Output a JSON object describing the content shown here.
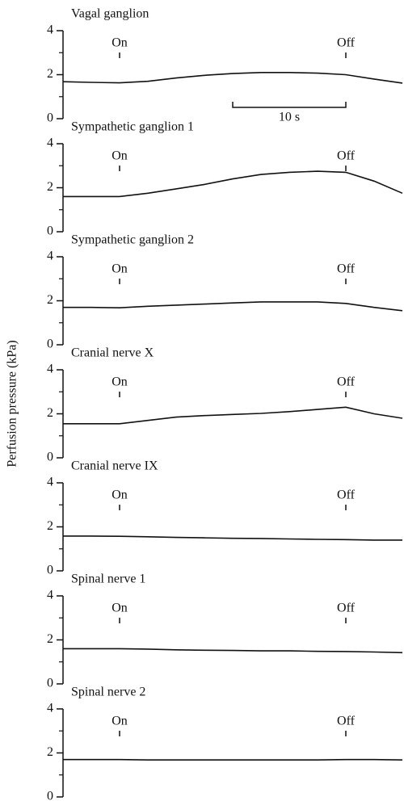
{
  "ylabel": "Perfusion pressure (kPa)",
  "chart_data": [
    {
      "type": "line",
      "title": "Vagal ganglion",
      "xlim": [
        0,
        30
      ],
      "ylim": [
        0,
        4
      ],
      "yticks": [
        0,
        2,
        4
      ],
      "minor_yticks": [
        1,
        3
      ],
      "annotations": [
        {
          "x": 5,
          "label": "On"
        },
        {
          "x": 25,
          "label": "Off"
        }
      ],
      "scale_bar": {
        "x": [
          15,
          25
        ],
        "label": "10 s"
      },
      "x": [
        0,
        2.5,
        5,
        7.5,
        10,
        12.5,
        15,
        17.5,
        20,
        22.5,
        25,
        27.5,
        30
      ],
      "values": [
        1.68,
        1.65,
        1.63,
        1.7,
        1.85,
        1.97,
        2.05,
        2.1,
        2.1,
        2.07,
        2.0,
        1.8,
        1.62
      ]
    },
    {
      "type": "line",
      "title": "Sympathetic ganglion 1",
      "xlim": [
        0,
        30
      ],
      "ylim": [
        0,
        4
      ],
      "yticks": [
        0,
        2,
        4
      ],
      "minor_yticks": [
        1,
        3
      ],
      "annotations": [
        {
          "x": 5,
          "label": "On"
        },
        {
          "x": 25,
          "label": "Off"
        }
      ],
      "x": [
        0,
        2.5,
        5,
        7.5,
        10,
        12.5,
        15,
        17.5,
        20,
        22.5,
        25,
        27.5,
        30
      ],
      "values": [
        1.6,
        1.6,
        1.6,
        1.75,
        1.95,
        2.15,
        2.4,
        2.6,
        2.7,
        2.75,
        2.7,
        2.3,
        1.75
      ]
    },
    {
      "type": "line",
      "title": "Sympathetic ganglion 2",
      "xlim": [
        0,
        30
      ],
      "ylim": [
        0,
        4
      ],
      "yticks": [
        0,
        2,
        4
      ],
      "minor_yticks": [
        1,
        3
      ],
      "annotations": [
        {
          "x": 5,
          "label": "On"
        },
        {
          "x": 25,
          "label": "Off"
        }
      ],
      "x": [
        0,
        2.5,
        5,
        7.5,
        10,
        12.5,
        15,
        17.5,
        20,
        22.5,
        25,
        27.5,
        30
      ],
      "values": [
        1.7,
        1.7,
        1.68,
        1.75,
        1.8,
        1.85,
        1.9,
        1.95,
        1.95,
        1.95,
        1.88,
        1.7,
        1.55
      ]
    },
    {
      "type": "line",
      "title": "Cranial nerve X",
      "xlim": [
        0,
        30
      ],
      "ylim": [
        0,
        4
      ],
      "yticks": [
        0,
        2,
        4
      ],
      "minor_yticks": [
        1,
        3
      ],
      "annotations": [
        {
          "x": 5,
          "label": "On"
        },
        {
          "x": 25,
          "label": "Off"
        }
      ],
      "x": [
        0,
        2.5,
        5,
        7.5,
        10,
        12.5,
        15,
        17.5,
        20,
        22.5,
        25,
        27.5,
        30
      ],
      "values": [
        1.55,
        1.55,
        1.55,
        1.7,
        1.85,
        1.92,
        1.97,
        2.02,
        2.1,
        2.2,
        2.3,
        2.0,
        1.8
      ]
    },
    {
      "type": "line",
      "title": "Cranial nerve IX",
      "xlim": [
        0,
        30
      ],
      "ylim": [
        0,
        4
      ],
      "yticks": [
        0,
        2,
        4
      ],
      "minor_yticks": [
        1,
        3
      ],
      "annotations": [
        {
          "x": 5,
          "label": "On"
        },
        {
          "x": 25,
          "label": "Off"
        }
      ],
      "x": [
        0,
        2.5,
        5,
        7.5,
        10,
        12.5,
        15,
        17.5,
        20,
        22.5,
        25,
        27.5,
        30
      ],
      "values": [
        1.58,
        1.58,
        1.57,
        1.55,
        1.52,
        1.5,
        1.48,
        1.47,
        1.45,
        1.43,
        1.42,
        1.4,
        1.4
      ]
    },
    {
      "type": "line",
      "title": "Spinal nerve 1",
      "xlim": [
        0,
        30
      ],
      "ylim": [
        0,
        4
      ],
      "yticks": [
        0,
        2,
        4
      ],
      "minor_yticks": [
        1,
        3
      ],
      "annotations": [
        {
          "x": 5,
          "label": "On"
        },
        {
          "x": 25,
          "label": "Off"
        }
      ],
      "x": [
        0,
        2.5,
        5,
        7.5,
        10,
        12.5,
        15,
        17.5,
        20,
        22.5,
        25,
        27.5,
        30
      ],
      "values": [
        1.6,
        1.6,
        1.6,
        1.58,
        1.55,
        1.53,
        1.52,
        1.5,
        1.5,
        1.48,
        1.47,
        1.45,
        1.42
      ]
    },
    {
      "type": "line",
      "title": "Spinal nerve 2",
      "xlim": [
        0,
        30
      ],
      "ylim": [
        0,
        4
      ],
      "yticks": [
        0,
        2,
        4
      ],
      "minor_yticks": [
        1,
        3
      ],
      "annotations": [
        {
          "x": 5,
          "label": "On"
        },
        {
          "x": 25,
          "label": "Off"
        }
      ],
      "x": [
        0,
        2.5,
        5,
        7.5,
        10,
        12.5,
        15,
        17.5,
        20,
        22.5,
        25,
        27.5,
        30
      ],
      "values": [
        1.7,
        1.7,
        1.7,
        1.68,
        1.68,
        1.68,
        1.68,
        1.68,
        1.68,
        1.68,
        1.7,
        1.7,
        1.68
      ]
    }
  ]
}
